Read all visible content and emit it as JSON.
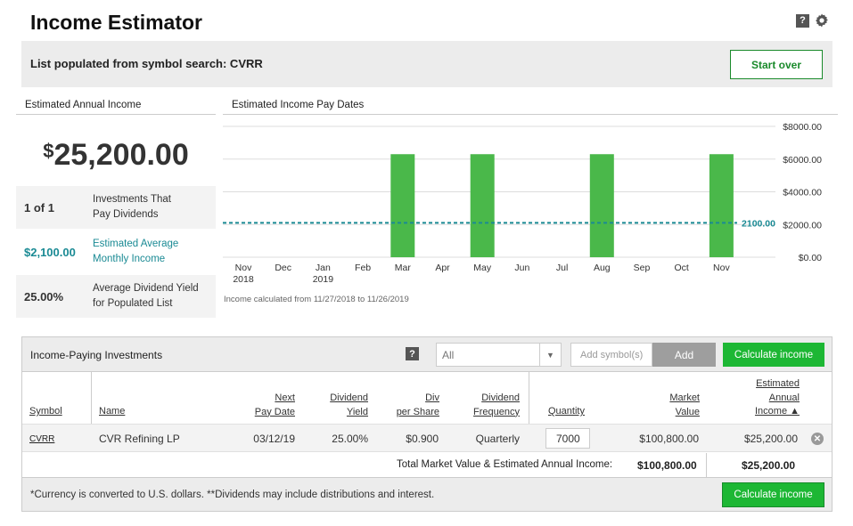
{
  "page": {
    "title": "Income Estimator"
  },
  "banner": {
    "text": "List populated from symbol search: CVRR",
    "start_over": "Start over"
  },
  "summary": {
    "heading": "Estimated Annual Income",
    "dollar_sign": "$",
    "amount": "25,200.00",
    "stats": [
      {
        "value": "1 of 1",
        "label_line1": "Investments That",
        "label_line2": "Pay Dividends"
      },
      {
        "value": "$2,100.00",
        "label_line1": "Estimated Average",
        "label_line2": "Monthly Income"
      },
      {
        "value": "25.00%",
        "label_line1": "Average Dividend Yield",
        "label_line2": "for Populated List"
      }
    ]
  },
  "chart_panel": {
    "heading": "Estimated Income Pay Dates",
    "note": "Income calculated from 11/27/2018 to 11/26/2019"
  },
  "chart_data": {
    "type": "bar",
    "categories": [
      "Nov 2018",
      "Dec",
      "Jan 2019",
      "Feb",
      "Mar",
      "Apr",
      "May",
      "Jun",
      "Jul",
      "Aug",
      "Sep",
      "Oct",
      "Nov"
    ],
    "category_lines": [
      [
        "Nov",
        "2018"
      ],
      [
        "Dec"
      ],
      [
        "Jan",
        "2019"
      ],
      [
        "Feb"
      ],
      [
        "Mar"
      ],
      [
        "Apr"
      ],
      [
        "May"
      ],
      [
        "Jun"
      ],
      [
        "Jul"
      ],
      [
        "Aug"
      ],
      [
        "Sep"
      ],
      [
        "Oct"
      ],
      [
        "Nov"
      ]
    ],
    "values": [
      0,
      0,
      0,
      0,
      6300,
      0,
      6300,
      0,
      0,
      6300,
      0,
      0,
      6300
    ],
    "ylim": [
      0,
      8000
    ],
    "yticks": [
      "$0.00",
      "$2000.00",
      "$4000.00",
      "$6000.00",
      "$8000.00"
    ],
    "ytick_values": [
      0,
      2000,
      4000,
      6000,
      8000
    ],
    "y_axis_side": "right",
    "reference_line": {
      "value": 2100,
      "label": "2100.00",
      "style": "dashed",
      "color": "#1a8a94"
    },
    "bar_color": "#4ab84a",
    "grid": true
  },
  "investments": {
    "title": "Income-Paying Investments",
    "help": "?",
    "filter_value": "All",
    "add_placeholder": "Add symbol(s)",
    "add_label": "Add",
    "calc_label": "Calculate income",
    "headers": {
      "symbol": "Symbol",
      "name": "Name",
      "next_pay_date": [
        "Next",
        "Pay Date"
      ],
      "dividend_yield": [
        "Dividend",
        "Yield"
      ],
      "div_per_share": [
        "Div",
        "per Share"
      ],
      "dividend_frequency": [
        "Dividend",
        "Frequency"
      ],
      "quantity": "Quantity",
      "market_value": [
        "Market",
        "Value"
      ],
      "estimated_annual_income": [
        "Estimated",
        "Annual",
        "Income ▲"
      ]
    },
    "rows": [
      {
        "symbol": "CVRR",
        "name": "CVR Refining LP",
        "next_pay_date": "03/12/19",
        "dividend_yield": "25.00%",
        "div_per_share": "$0.900",
        "dividend_frequency": "Quarterly",
        "quantity": "7000",
        "market_value": "$100,800.00",
        "estimated_annual_income": "$25,200.00"
      }
    ],
    "total_label": "Total Market Value & Estimated Annual Income:",
    "total_market_value": "$100,800.00",
    "total_income": "$25,200.00",
    "footer_note": "*Currency is converted to U.S. dollars. **Dividends may include distributions and interest."
  },
  "colors": {
    "green": "#1db734",
    "teal": "#1a8a94",
    "bar": "#4ab84a"
  }
}
